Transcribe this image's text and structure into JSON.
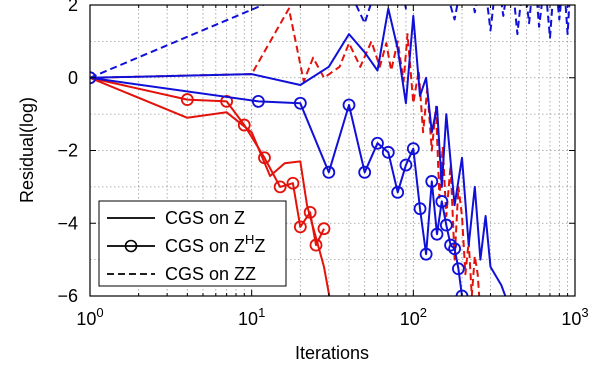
{
  "chart_data": {
    "type": "line",
    "xlabel": "Iterations",
    "ylabel": "Residual(log)",
    "xscale": "log",
    "xlim": [
      1,
      1000
    ],
    "ylim": [
      -6,
      2
    ],
    "grid": "dotted",
    "legend_location": "lower-left",
    "x_ticks": [
      {
        "value": 1,
        "base": "10",
        "exp": "0"
      },
      {
        "value": 10,
        "base": "10",
        "exp": "1"
      },
      {
        "value": 100,
        "base": "10",
        "exp": "2"
      },
      {
        "value": 1000,
        "base": "10",
        "exp": "3"
      }
    ],
    "y_ticks": [
      {
        "value": 2,
        "label": "2"
      },
      {
        "value": 0,
        "label": "0"
      },
      {
        "value": -2,
        "label": "−2"
      },
      {
        "value": -4,
        "label": "−4"
      },
      {
        "value": -6,
        "label": "−6"
      }
    ],
    "legend": [
      {
        "label_parts": [
          "CGS on Z"
        ],
        "style": "solid",
        "marker": "none"
      },
      {
        "label_parts": [
          "CGS on Z",
          "H",
          "Z"
        ],
        "style": "solid",
        "marker": "circle"
      },
      {
        "label_parts": [
          "CGS on ZZ"
        ],
        "style": "dashed",
        "marker": "none"
      }
    ],
    "series": [
      {
        "color": "#e3120b",
        "style": "solid",
        "marker": "none",
        "x": [
          1,
          4,
          7,
          10,
          13,
          16,
          20,
          22,
          25,
          28,
          32
        ],
        "y": [
          0,
          -1.1,
          -0.95,
          -1.5,
          -2.7,
          -2.35,
          -2.3,
          -3.5,
          -4.4,
          -5.2,
          -6.6
        ]
      },
      {
        "color": "#e3120b",
        "style": "solid",
        "marker": "circle",
        "x": [
          1,
          4,
          7,
          9,
          12,
          15,
          18,
          20,
          23,
          25,
          28
        ],
        "y": [
          0,
          -0.6,
          -0.65,
          -1.3,
          -2.2,
          -3.0,
          -2.9,
          -4.1,
          -3.7,
          -4.6,
          -4.15
        ]
      },
      {
        "color": "#e3120b",
        "style": "dashed",
        "marker": "none",
        "x": [
          1,
          10,
          17,
          21,
          24,
          28,
          35,
          40,
          47,
          55,
          62,
          68,
          73,
          80,
          87,
          92,
          100,
          108,
          115,
          122,
          130,
          138,
          145,
          152,
          160,
          170,
          180,
          190,
          200,
          210,
          220,
          230,
          240,
          250,
          260,
          270
        ],
        "y": [
          0,
          0.1,
          1.9,
          -0.1,
          0.55,
          0.0,
          0.3,
          0.95,
          0.3,
          1.0,
          0.3,
          0.95,
          0.2,
          1.0,
          -0.1,
          1.2,
          -0.7,
          0.2,
          -1.5,
          -0.3,
          -2.0,
          -0.8,
          -3.3,
          -1.9,
          -3.8,
          -2.4,
          -5.0,
          -3.0,
          -3.8,
          -5.4,
          -4.5,
          -6.0,
          -4.9,
          -5.4,
          -6.5,
          -6.9
        ]
      },
      {
        "color": "#1010d8",
        "style": "solid",
        "marker": "none",
        "x": [
          1,
          10,
          20,
          30,
          40,
          50,
          60,
          70,
          80,
          90,
          100,
          110,
          120,
          130,
          140,
          150,
          160,
          180,
          200,
          220,
          240,
          260,
          280,
          300,
          350,
          400
        ],
        "y": [
          0,
          0.1,
          -0.2,
          0.3,
          1.2,
          0.7,
          0.2,
          1.9,
          0.8,
          -0.7,
          1.7,
          -0.5,
          0.0,
          -1.5,
          -0.8,
          -3.0,
          -1.0,
          -3.5,
          -2.2,
          -4.6,
          -3.0,
          -5.0,
          -3.8,
          -5.2,
          -5.7,
          -6.4
        ]
      },
      {
        "color": "#1010d8",
        "style": "solid",
        "marker": "circle",
        "x": [
          1,
          11,
          20,
          30,
          40,
          50,
          60,
          70,
          80,
          90,
          100,
          110,
          120,
          130,
          140,
          150,
          160,
          170,
          180,
          190,
          200
        ],
        "y": [
          0,
          -0.65,
          -0.7,
          -2.6,
          -0.75,
          -2.6,
          -1.8,
          -2.05,
          -3.15,
          -2.4,
          -1.95,
          -3.6,
          -4.85,
          -2.85,
          -4.3,
          -3.4,
          -4.05,
          -4.6,
          -4.7,
          -5.25,
          -6.0
        ]
      },
      {
        "color": "#1010d8",
        "style": "dashed",
        "marker": "none",
        "x": [
          1,
          15,
          30,
          50,
          60,
          70,
          80,
          90,
          100,
          120,
          150,
          180,
          210,
          240,
          270,
          300,
          330,
          360,
          400,
          440,
          480,
          520,
          560,
          600,
          650,
          700,
          750,
          800,
          850,
          900,
          950,
          1000
        ],
        "y": [
          0,
          2.2,
          3.6,
          1.5,
          2.6,
          2.0,
          3.1,
          1.9,
          3.3,
          2.1,
          2.8,
          1.6,
          3.2,
          1.8,
          3.0,
          1.3,
          2.9,
          1.7,
          3.1,
          1.2,
          2.8,
          1.5,
          3.0,
          1.4,
          2.7,
          1.1,
          2.9,
          1.6,
          2.8,
          1.2,
          3.0,
          2.0
        ]
      }
    ]
  }
}
